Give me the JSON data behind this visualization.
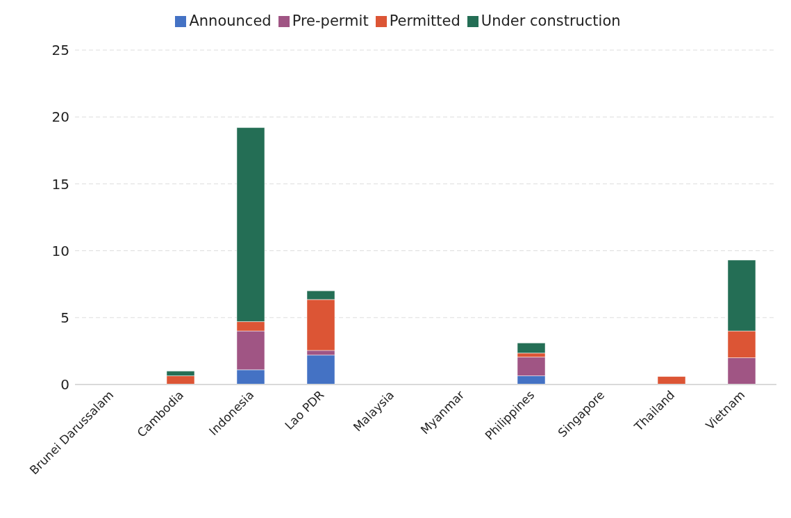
{
  "chart_data": {
    "type": "bar",
    "stacked": true,
    "categories": [
      "Brunei Darussalam",
      "Cambodia",
      "Indonesia",
      "Lao PDR",
      "Malaysia",
      "Myanmar",
      "Philippines",
      "Singapore",
      "Thailand",
      "Vietnam"
    ],
    "series": [
      {
        "name": "Announced",
        "color": "#4472c4",
        "values": [
          0,
          0,
          1.1,
          2.2,
          0,
          0,
          0.65,
          0,
          0,
          0
        ]
      },
      {
        "name": "Pre-permit",
        "color": "#a05584",
        "values": [
          0,
          0,
          2.9,
          0.35,
          0,
          0,
          1.4,
          0,
          0,
          2.0
        ]
      },
      {
        "name": "Permitted",
        "color": "#dc5535",
        "values": [
          0,
          0.65,
          0.7,
          3.8,
          0,
          0,
          0.3,
          0,
          0.6,
          2.0
        ]
      },
      {
        "name": "Under construction",
        "color": "#246e55",
        "values": [
          0,
          0.35,
          14.5,
          0.65,
          0,
          0,
          0.75,
          0,
          0,
          5.3
        ]
      }
    ],
    "ylim": [
      0,
      25
    ],
    "yticks": [
      0,
      5,
      10,
      15,
      20,
      25
    ],
    "grid": "y",
    "legend": "top"
  }
}
